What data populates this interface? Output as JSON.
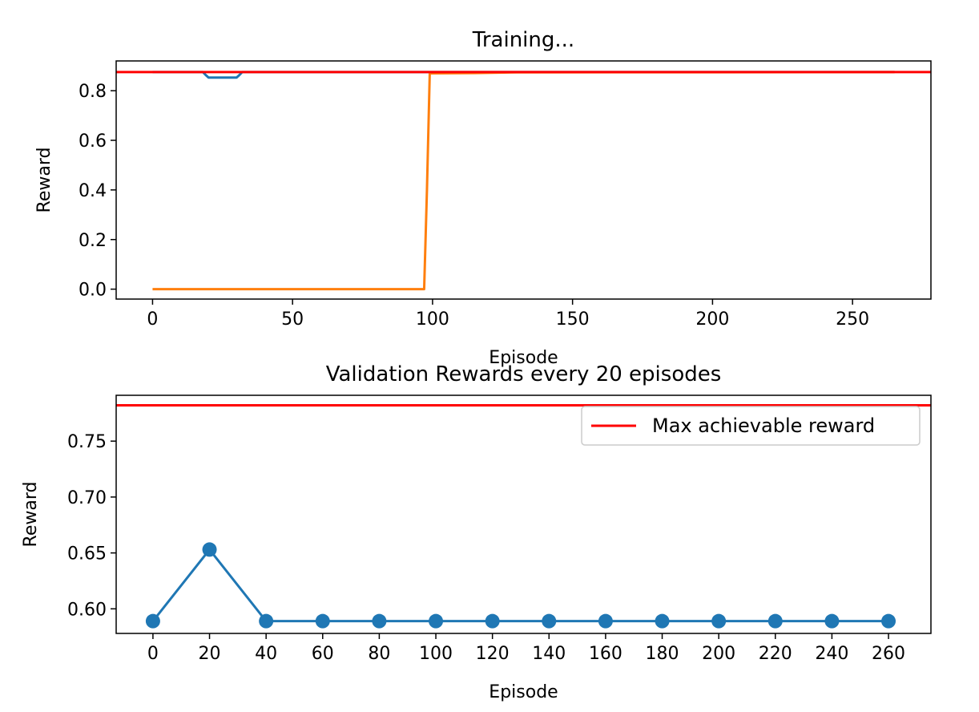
{
  "chart_data": [
    {
      "type": "line",
      "title": "Training...",
      "xlabel": "Episode",
      "ylabel": "Reward",
      "xlim": [
        -13,
        278
      ],
      "ylim": [
        -0.04,
        0.92
      ],
      "xticks": [
        0,
        50,
        100,
        150,
        200,
        250
      ],
      "yticks": [
        0.0,
        0.2,
        0.4,
        0.6,
        0.8
      ],
      "grid": false,
      "hline": {
        "y": 0.875,
        "color": "#ff0000"
      },
      "series": [
        {
          "color": "#1f77b4",
          "x": [
            0,
            18,
            19,
            20,
            30,
            31,
            32,
            33,
            265
          ],
          "y": [
            0.875,
            0.875,
            0.863,
            0.853,
            0.853,
            0.863,
            0.875,
            0.875,
            0.875
          ]
        },
        {
          "color": "#ff7f0e",
          "x": [
            0,
            97,
            98,
            99,
            115,
            130,
            265
          ],
          "y": [
            0.0,
            0.0,
            0.4,
            0.87,
            0.871,
            0.874,
            0.875
          ]
        }
      ]
    },
    {
      "type": "line",
      "title": "Validation Rewards every 20 episodes",
      "xlabel": "Episode",
      "ylabel": "Reward",
      "xlim": [
        -13,
        275
      ],
      "ylim": [
        0.578,
        0.791
      ],
      "xticks": [
        0,
        20,
        40,
        60,
        80,
        100,
        120,
        140,
        160,
        180,
        200,
        220,
        240,
        260
      ],
      "yticks": [
        0.6,
        0.65,
        0.7,
        0.75
      ],
      "grid": false,
      "legend": {
        "position": "top-right",
        "entries": [
          {
            "label": "Max achievable reward",
            "color": "#ff0000"
          }
        ]
      },
      "hline": {
        "y": 0.782,
        "color": "#ff0000"
      },
      "series": [
        {
          "color": "#1f77b4",
          "markers": true,
          "x": [
            0,
            20,
            40,
            60,
            80,
            100,
            120,
            140,
            160,
            180,
            200,
            220,
            240,
            260
          ],
          "y": [
            0.589,
            0.653,
            0.589,
            0.589,
            0.589,
            0.589,
            0.589,
            0.589,
            0.589,
            0.589,
            0.589,
            0.589,
            0.589,
            0.589
          ]
        }
      ]
    }
  ]
}
